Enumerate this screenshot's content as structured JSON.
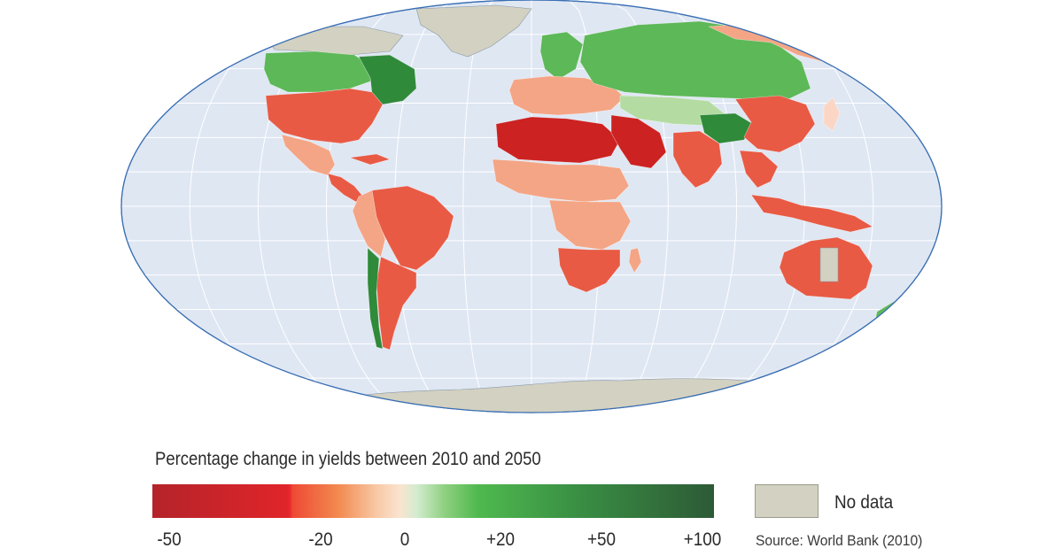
{
  "legend": {
    "title": "Percentage change in yields between 2010 and 2050",
    "ticks": [
      {
        "label": "-50",
        "value": -50
      },
      {
        "label": "-20",
        "value": -20
      },
      {
        "label": "0",
        "value": 0
      },
      {
        "label": "+20",
        "value": 20
      },
      {
        "label": "+50",
        "value": 50
      },
      {
        "label": "+100",
        "value": 100
      }
    ],
    "no_data_label": "No data",
    "source": "Source: World Bank (2010)"
  },
  "colors": {
    "ocean": "#dfe7f3",
    "graticule": "#ffffff",
    "coast": "#3a6fb3",
    "no_data": "#d3d1c1",
    "strong_decrease": "#cc2222",
    "decrease": "#e85a44",
    "mild_decrease": "#f4a585",
    "neutral": "#fbd6c4",
    "mild_increase": "#b4dca2",
    "increase": "#5db858",
    "strong_increase": "#2f8a3a"
  },
  "regions": [
    {
      "name": "greenland",
      "class": "no_data"
    },
    {
      "name": "canada",
      "class": "increase"
    },
    {
      "name": "eastern-canada",
      "class": "strong_increase"
    },
    {
      "name": "united-states",
      "class": "decrease"
    },
    {
      "name": "mexico",
      "class": "mild_decrease"
    },
    {
      "name": "central-america",
      "class": "decrease"
    },
    {
      "name": "brazil",
      "class": "decrease"
    },
    {
      "name": "andes",
      "class": "mild_decrease"
    },
    {
      "name": "southern-cone",
      "class": "decrease"
    },
    {
      "name": "chile",
      "class": "strong_increase"
    },
    {
      "name": "scandinavia",
      "class": "increase"
    },
    {
      "name": "europe",
      "class": "mild_decrease"
    },
    {
      "name": "russia",
      "class": "increase"
    },
    {
      "name": "siberia-east",
      "class": "mild_decrease"
    },
    {
      "name": "central-asia",
      "class": "mild_increase"
    },
    {
      "name": "north-africa",
      "class": "strong_decrease"
    },
    {
      "name": "sahel",
      "class": "mild_decrease"
    },
    {
      "name": "central-africa",
      "class": "mild_decrease"
    },
    {
      "name": "southern-africa",
      "class": "decrease"
    },
    {
      "name": "madagascar",
      "class": "mild_decrease"
    },
    {
      "name": "middle-east",
      "class": "strong_decrease"
    },
    {
      "name": "south-asia",
      "class": "decrease"
    },
    {
      "name": "china",
      "class": "decrease"
    },
    {
      "name": "tibet",
      "class": "strong_increase"
    },
    {
      "name": "southeast-asia",
      "class": "decrease"
    },
    {
      "name": "indonesia",
      "class": "decrease"
    },
    {
      "name": "australia",
      "class": "decrease"
    },
    {
      "name": "central-australia",
      "class": "no_data"
    },
    {
      "name": "new-zealand",
      "class": "increase"
    },
    {
      "name": "antarctica",
      "class": "no_data"
    }
  ]
}
